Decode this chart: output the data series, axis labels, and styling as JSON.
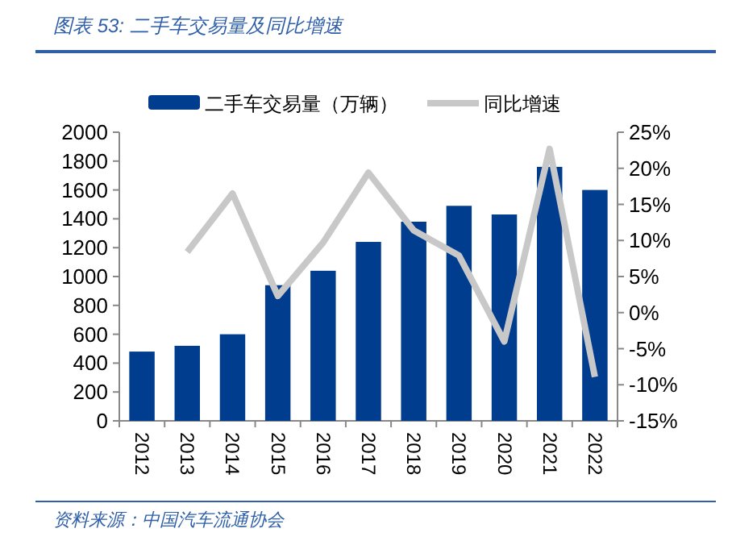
{
  "chart_data": {
    "type": "bar",
    "title": "图表 53:  二手车交易量及同比增速",
    "categories": [
      "2012",
      "2013",
      "2014",
      "2015",
      "2016",
      "2017",
      "2018",
      "2019",
      "2020",
      "2021",
      "2022"
    ],
    "series": [
      {
        "name": "二手车交易量（万辆）",
        "color": "#003d8f",
        "values": [
          480,
          520,
          600,
          940,
          1040,
          1240,
          1380,
          1490,
          1430,
          1760,
          1600
        ]
      },
      {
        "name": "同比增速",
        "type": "line",
        "axis": "y2",
        "color": "#c8c8c8",
        "values": [
          null,
          8.4,
          16.5,
          2.3,
          9.7,
          19.4,
          11.4,
          7.9,
          -4.0,
          22.7,
          -8.9
        ]
      }
    ],
    "ylim": [
      0,
      2000
    ],
    "yticks": [
      0,
      200,
      400,
      600,
      800,
      1000,
      1200,
      1400,
      1600,
      1800,
      2000
    ],
    "y2lim": [
      -15,
      25
    ],
    "y2ticks": [
      {
        "value": -15,
        "label": "-15%"
      },
      {
        "value": -10,
        "label": "-10%"
      },
      {
        "value": -5,
        "label": "-5%"
      },
      {
        "value": 0,
        "label": "0%"
      },
      {
        "value": 5,
        "label": "5%"
      },
      {
        "value": 10,
        "label": "10%"
      },
      {
        "value": 15,
        "label": "15%"
      },
      {
        "value": 20,
        "label": "20%"
      },
      {
        "value": 25,
        "label": "25%"
      }
    ],
    "legend": "top",
    "grid": false,
    "marker": "none",
    "annotations": [
      "资料来源：中国汽车流通协会"
    ]
  }
}
